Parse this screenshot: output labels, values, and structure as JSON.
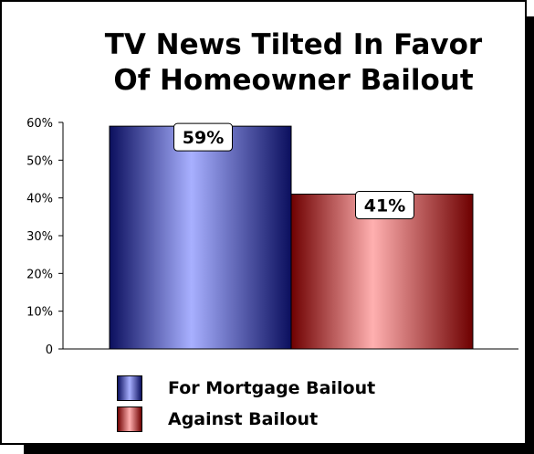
{
  "chart_data": {
    "type": "bar",
    "title_line1": "TV News Tilted In Favor",
    "title_line2": "Of Homeowner Bailout",
    "ylim": [
      0,
      60
    ],
    "yticks": [
      0,
      10,
      20,
      30,
      40,
      50,
      60
    ],
    "ytick_labels": [
      "0",
      "10%",
      "20%",
      "30%",
      "40%",
      "50%",
      "60%"
    ],
    "series": [
      {
        "name": "For Mortgage Bailout",
        "value": 59,
        "label": "59%",
        "color_dark": "#0b0f5e",
        "color_light": "#a8b0ff"
      },
      {
        "name": "Against Bailout",
        "value": 41,
        "label": "41%",
        "color_dark": "#6e0000",
        "color_light": "#ffb0b0"
      }
    ],
    "legend": [
      "For Mortgage Bailout",
      "Against Bailout"
    ],
    "legend_position": "bottom",
    "grid": false
  }
}
